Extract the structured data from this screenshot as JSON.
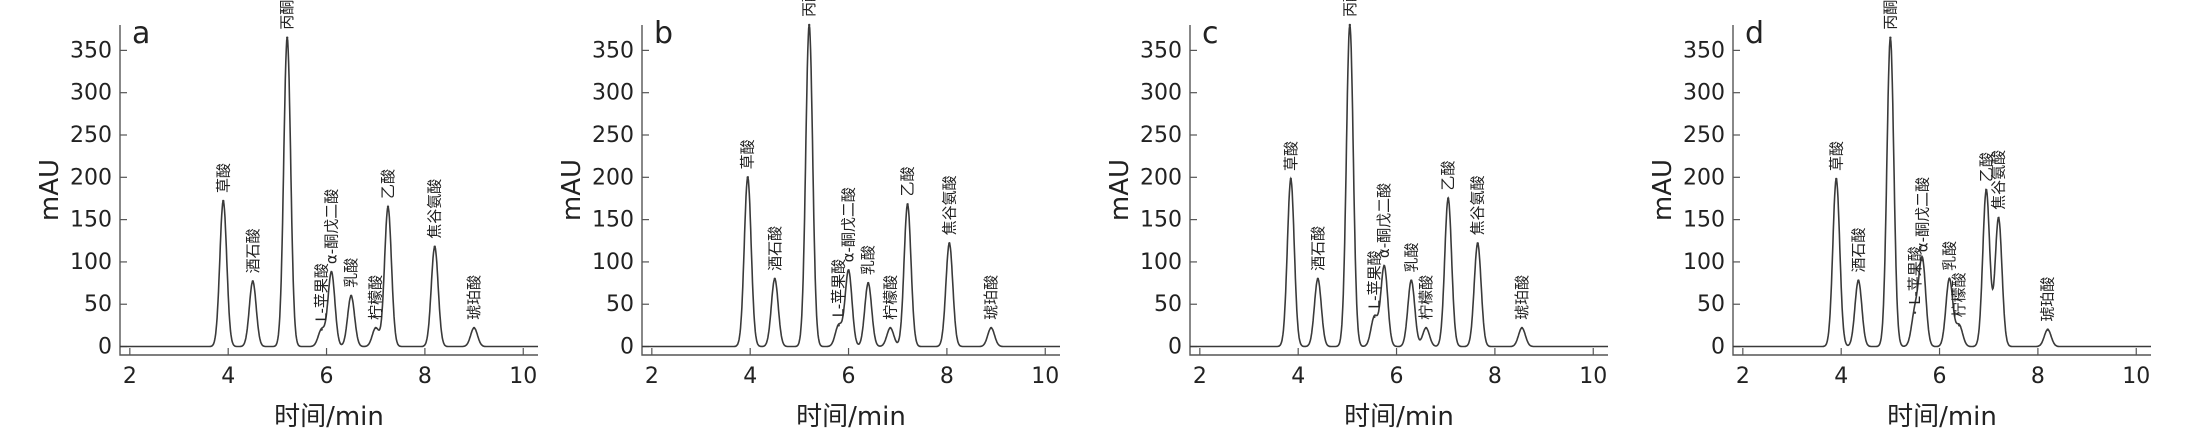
{
  "chart_data": [
    {
      "type": "line",
      "title": "a",
      "xlabel": "时间/min",
      "ylabel": "mAU",
      "xlim": [
        1.8,
        10.3
      ],
      "ylim": [
        -10,
        380
      ],
      "xticks": [
        2,
        4,
        6,
        8,
        10
      ],
      "yticks": [
        0,
        50,
        100,
        150,
        200,
        250,
        300,
        350
      ],
      "grid": false,
      "peaks": [
        {
          "label": "草酸",
          "x": 3.9,
          "y": 172
        },
        {
          "label": "酒石酸",
          "x": 4.5,
          "y": 77
        },
        {
          "label": "丙酮酸",
          "x": 5.2,
          "y": 365
        },
        {
          "label": "L-苹果酸",
          "x": 5.9,
          "y": 20
        },
        {
          "label": "α-酮戊二酸",
          "x": 6.1,
          "y": 88
        },
        {
          "label": "乳酸",
          "x": 6.5,
          "y": 60
        },
        {
          "label": "柠檬酸",
          "x": 7.0,
          "y": 22
        },
        {
          "label": "乙酸",
          "x": 7.25,
          "y": 165
        },
        {
          "label": "焦谷氨酸",
          "x": 8.2,
          "y": 118
        },
        {
          "label": "琥珀酸",
          "x": 9.0,
          "y": 22
        }
      ]
    },
    {
      "type": "line",
      "title": "b",
      "xlabel": "时间/min",
      "ylabel": "mAU",
      "xlim": [
        1.8,
        10.3
      ],
      "ylim": [
        -10,
        380
      ],
      "xticks": [
        2,
        4,
        6,
        8,
        10
      ],
      "yticks": [
        0,
        50,
        100,
        150,
        200,
        250,
        300,
        350
      ],
      "grid": false,
      "peaks": [
        {
          "label": "草酸",
          "x": 3.95,
          "y": 200
        },
        {
          "label": "酒石酸",
          "x": 4.5,
          "y": 80
        },
        {
          "label": "丙酮酸",
          "x": 5.2,
          "y": 380
        },
        {
          "label": "L-苹果酸",
          "x": 5.8,
          "y": 25
        },
        {
          "label": "α-酮戊二酸",
          "x": 6.0,
          "y": 90
        },
        {
          "label": "乳酸",
          "x": 6.4,
          "y": 75
        },
        {
          "label": "柠檬酸",
          "x": 6.85,
          "y": 22
        },
        {
          "label": "乙酸",
          "x": 7.2,
          "y": 168
        },
        {
          "label": "焦谷氨酸",
          "x": 8.05,
          "y": 122
        },
        {
          "label": "琥珀酸",
          "x": 8.9,
          "y": 22
        }
      ]
    },
    {
      "type": "line",
      "title": "c",
      "xlabel": "时间/min",
      "ylabel": "mAU",
      "xlim": [
        1.8,
        10.3
      ],
      "ylim": [
        -10,
        380
      ],
      "xticks": [
        2,
        4,
        6,
        8,
        10
      ],
      "yticks": [
        0,
        50,
        100,
        150,
        200,
        250,
        300,
        350
      ],
      "grid": false,
      "peaks": [
        {
          "label": "草酸",
          "x": 3.85,
          "y": 198
        },
        {
          "label": "酒石酸",
          "x": 4.4,
          "y": 80
        },
        {
          "label": "丙酮酸",
          "x": 5.05,
          "y": 380
        },
        {
          "label": "L-苹果酸",
          "x": 5.55,
          "y": 35
        },
        {
          "label": "α-酮戊二酸",
          "x": 5.75,
          "y": 95
        },
        {
          "label": "乳酸",
          "x": 6.3,
          "y": 78
        },
        {
          "label": "柠檬酸",
          "x": 6.6,
          "y": 22
        },
        {
          "label": "乙酸",
          "x": 7.05,
          "y": 175
        },
        {
          "label": "焦谷氨酸",
          "x": 7.65,
          "y": 122
        },
        {
          "label": "琥珀酸",
          "x": 8.55,
          "y": 22
        }
      ]
    },
    {
      "type": "line",
      "title": "d",
      "xlabel": "时间/min",
      "ylabel": "mAU",
      "xlim": [
        1.8,
        10.3
      ],
      "ylim": [
        -10,
        380
      ],
      "xticks": [
        2,
        4,
        6,
        8,
        10
      ],
      "yticks": [
        0,
        50,
        100,
        150,
        200,
        250,
        300,
        350
      ],
      "grid": false,
      "peaks": [
        {
          "label": "草酸",
          "x": 3.9,
          "y": 198
        },
        {
          "label": "酒石酸",
          "x": 4.35,
          "y": 78
        },
        {
          "label": "丙酮酸",
          "x": 5.0,
          "y": 365
        },
        {
          "label": "L-苹果酸",
          "x": 5.5,
          "y": 40
        },
        {
          "label": "α-酮戊二酸",
          "x": 5.65,
          "y": 102
        },
        {
          "label": "乳酸",
          "x": 6.2,
          "y": 80
        },
        {
          "label": "柠檬酸",
          "x": 6.4,
          "y": 25
        },
        {
          "label": "乙酸",
          "x": 6.95,
          "y": 185
        },
        {
          "label": "焦谷氨酸",
          "x": 7.2,
          "y": 152
        },
        {
          "label": "琥珀酸",
          "x": 8.2,
          "y": 20
        }
      ]
    }
  ]
}
